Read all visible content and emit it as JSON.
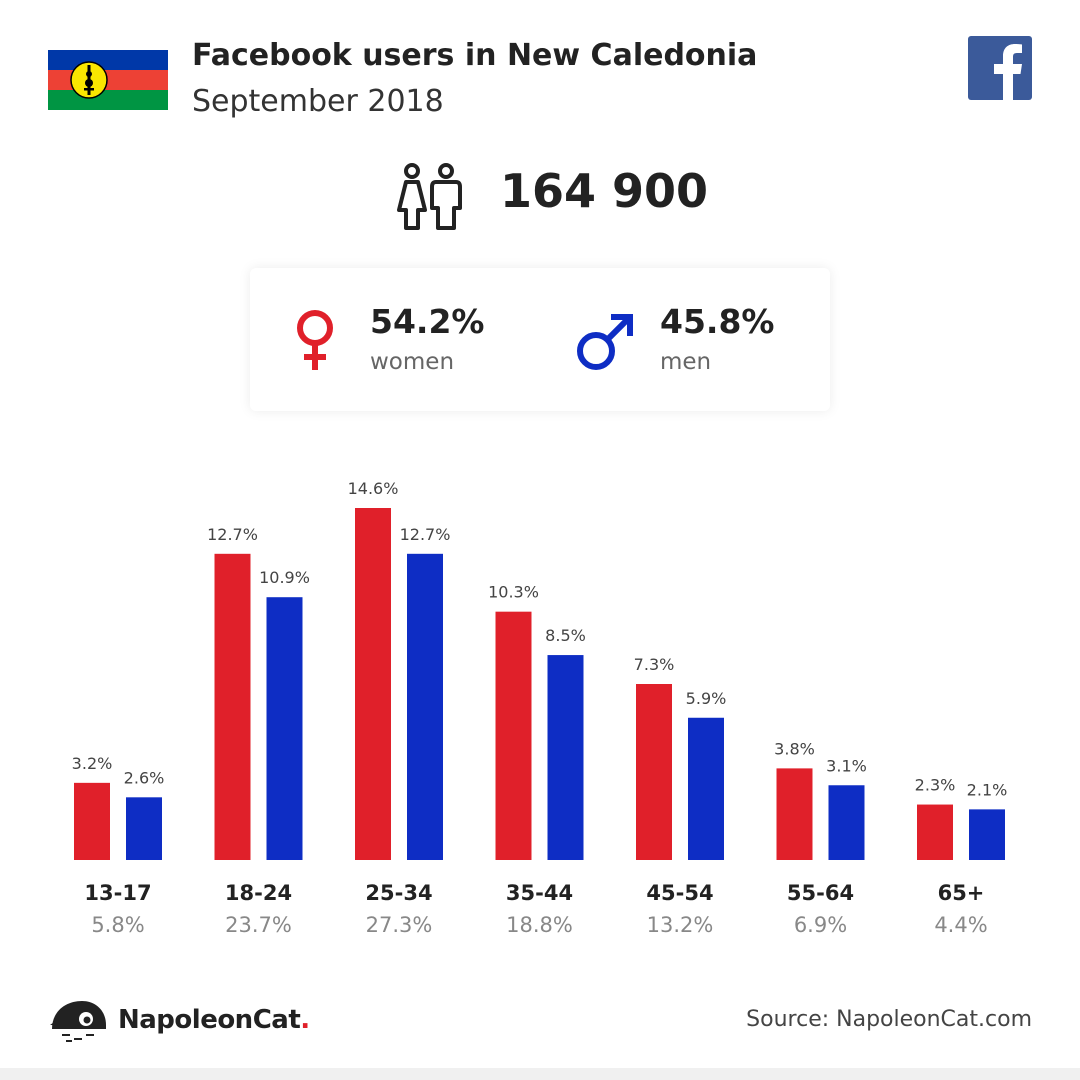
{
  "header": {
    "title": "Facebook users in New Caledonia",
    "subtitle": "September 2018"
  },
  "summary": {
    "total_users": "164 900",
    "women": {
      "value": "54.2%",
      "label": "women"
    },
    "men": {
      "value": "45.8%",
      "label": "men"
    }
  },
  "colors": {
    "women": "#e0202a",
    "men": "#0e2dc4",
    "facebook": "#3b5a9a"
  },
  "chart_data": {
    "type": "bar",
    "categories": [
      "13-17",
      "18-24",
      "25-34",
      "35-44",
      "45-54",
      "55-64",
      "65+"
    ],
    "category_totals": [
      "5.8%",
      "23.7%",
      "27.3%",
      "18.8%",
      "13.2%",
      "6.9%",
      "4.4%"
    ],
    "series": [
      {
        "values": [
          3.2,
          12.7,
          14.6,
          10.3,
          7.3,
          3.8,
          2.3
        ],
        "labels": [
          "3.2%",
          "12.7%",
          "14.6%",
          "10.3%",
          "7.3%",
          "3.8%",
          "2.3%"
        ],
        "color": "#e0202a"
      },
      {
        "values": [
          2.6,
          10.9,
          12.7,
          8.5,
          5.9,
          3.1,
          2.1
        ],
        "labels": [
          "2.6%",
          "10.9%",
          "12.7%",
          "8.5%",
          "5.9%",
          "3.1%",
          "2.1%"
        ],
        "color": "#0e2dc4"
      }
    ],
    "ylim": [
      0,
      14.6
    ],
    "grid": false
  },
  "footer": {
    "brand_name": "NapoleonCat",
    "brand_dot": ".",
    "source": "Source: NapoleonCat.com"
  }
}
